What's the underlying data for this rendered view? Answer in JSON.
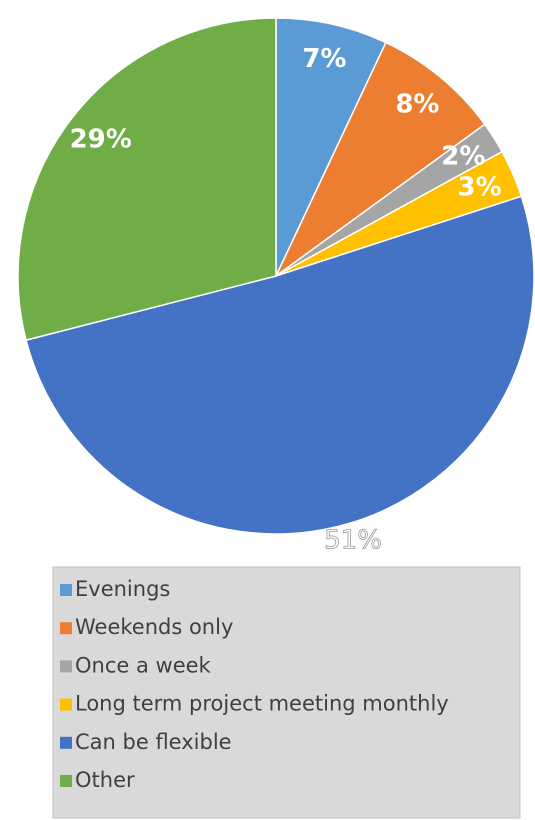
{
  "chart_data": {
    "type": "pie",
    "categories": [
      "Evenings",
      "Weekends only",
      "Once a week",
      "Long term project meeting monthly",
      "Can be flexible",
      "Other"
    ],
    "values": [
      7,
      8,
      2,
      3,
      51,
      29
    ],
    "value_labels": [
      "7%",
      "8%",
      "2%",
      "3%",
      "51%",
      "29%"
    ],
    "colors": [
      "#5b9bd5",
      "#ed7d31",
      "#a5a5a5",
      "#ffc000",
      "#4472c4",
      "#70ad47"
    ],
    "legend": "bottom"
  }
}
